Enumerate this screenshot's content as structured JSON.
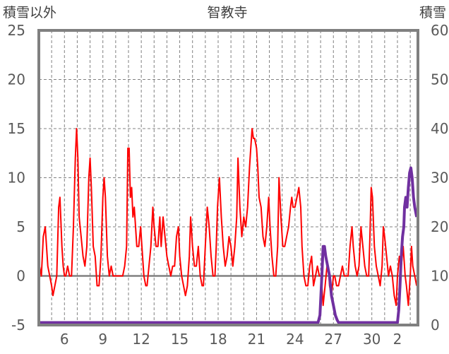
{
  "chart_data": {
    "type": "line",
    "title": "智教寺",
    "ylabel_left": "積雪以外",
    "ylabel_right": "積雪",
    "y_left_range": [
      -5,
      25
    ],
    "y_left_ticks": [
      -5,
      0,
      5,
      10,
      15,
      20,
      25
    ],
    "y_right_range": [
      0,
      60
    ],
    "y_right_ticks": [
      0,
      10,
      20,
      30,
      40,
      50,
      60
    ],
    "x_range_days": [
      4.0,
      33.6
    ],
    "x_tick_labels": [
      "6",
      "9",
      "12",
      "15",
      "18",
      "21",
      "24",
      "27",
      "30",
      "2"
    ],
    "x_tick_days": [
      6,
      9,
      12,
      15,
      18,
      21,
      24,
      27,
      30,
      32
    ],
    "grid": true,
    "colors": {
      "temperature": "#ff0000",
      "snow": "#7030a0",
      "frame": "#808080",
      "grid": "#808080",
      "zero_line": "#808080"
    },
    "series": [
      {
        "axis": "left",
        "points": [
          [
            4.05,
            1
          ],
          [
            4.2,
            0
          ],
          [
            4.35,
            4
          ],
          [
            4.5,
            5
          ],
          [
            4.6,
            3
          ],
          [
            4.7,
            1
          ],
          [
            4.85,
            0
          ],
          [
            5.0,
            -1
          ],
          [
            5.1,
            -2
          ],
          [
            5.25,
            -1
          ],
          [
            5.4,
            0
          ],
          [
            5.55,
            7
          ],
          [
            5.65,
            8
          ],
          [
            5.8,
            3
          ],
          [
            5.9,
            1
          ],
          [
            6.0,
            0
          ],
          [
            6.1,
            0
          ],
          [
            6.25,
            1
          ],
          [
            6.4,
            0
          ],
          [
            6.55,
            0
          ],
          [
            6.7,
            5
          ],
          [
            6.85,
            12
          ],
          [
            6.95,
            15
          ],
          [
            7.05,
            12
          ],
          [
            7.15,
            6
          ],
          [
            7.3,
            4
          ],
          [
            7.45,
            2
          ],
          [
            7.6,
            1
          ],
          [
            7.75,
            3
          ],
          [
            7.9,
            10
          ],
          [
            8.0,
            12
          ],
          [
            8.1,
            9
          ],
          [
            8.25,
            3
          ],
          [
            8.4,
            2
          ],
          [
            8.55,
            -1
          ],
          [
            8.7,
            -1
          ],
          [
            8.85,
            2
          ],
          [
            9.0,
            8
          ],
          [
            9.1,
            10
          ],
          [
            9.2,
            8
          ],
          [
            9.35,
            2
          ],
          [
            9.5,
            0
          ],
          [
            9.65,
            1
          ],
          [
            9.8,
            0
          ],
          [
            10.0,
            0
          ],
          [
            10.2,
            0
          ],
          [
            10.4,
            0
          ],
          [
            10.55,
            0
          ],
          [
            10.7,
            1
          ],
          [
            10.85,
            3
          ],
          [
            10.95,
            13
          ],
          [
            11.05,
            13
          ],
          [
            11.15,
            8
          ],
          [
            11.25,
            9
          ],
          [
            11.35,
            6
          ],
          [
            11.45,
            7
          ],
          [
            11.55,
            5
          ],
          [
            11.65,
            3
          ],
          [
            11.8,
            3
          ],
          [
            11.95,
            5
          ],
          [
            12.05,
            3
          ],
          [
            12.2,
            0
          ],
          [
            12.35,
            -1
          ],
          [
            12.45,
            -1
          ],
          [
            12.6,
            1
          ],
          [
            12.75,
            3
          ],
          [
            12.9,
            7
          ],
          [
            13.0,
            5
          ],
          [
            13.15,
            3
          ],
          [
            13.3,
            3
          ],
          [
            13.45,
            6
          ],
          [
            13.55,
            3
          ],
          [
            13.7,
            6
          ],
          [
            13.85,
            4
          ],
          [
            14.0,
            2
          ],
          [
            14.15,
            1
          ],
          [
            14.3,
            0
          ],
          [
            14.45,
            1
          ],
          [
            14.6,
            1
          ],
          [
            14.75,
            4
          ],
          [
            14.9,
            5
          ],
          [
            15.0,
            2
          ],
          [
            15.15,
            0
          ],
          [
            15.3,
            -1
          ],
          [
            15.45,
            -2
          ],
          [
            15.6,
            -1
          ],
          [
            15.75,
            2
          ],
          [
            15.85,
            6
          ],
          [
            16.0,
            3
          ],
          [
            16.15,
            1
          ],
          [
            16.3,
            1
          ],
          [
            16.45,
            3
          ],
          [
            16.6,
            0
          ],
          [
            16.75,
            -1
          ],
          [
            16.85,
            -1
          ],
          [
            17.0,
            3
          ],
          [
            17.15,
            7
          ],
          [
            17.3,
            5
          ],
          [
            17.45,
            2
          ],
          [
            17.6,
            0
          ],
          [
            17.75,
            0
          ],
          [
            17.85,
            3
          ],
          [
            17.95,
            7
          ],
          [
            18.1,
            10
          ],
          [
            18.25,
            6
          ],
          [
            18.4,
            3
          ],
          [
            18.55,
            1
          ],
          [
            18.7,
            2
          ],
          [
            18.85,
            4
          ],
          [
            19.0,
            3
          ],
          [
            19.15,
            1
          ],
          [
            19.3,
            3
          ],
          [
            19.45,
            6
          ],
          [
            19.55,
            12
          ],
          [
            19.7,
            7
          ],
          [
            19.85,
            4
          ],
          [
            20.0,
            6
          ],
          [
            20.15,
            5
          ],
          [
            20.3,
            7
          ],
          [
            20.45,
            11
          ],
          [
            20.55,
            13
          ],
          [
            20.65,
            15
          ],
          [
            20.75,
            14
          ],
          [
            20.85,
            14
          ],
          [
            21.0,
            13
          ],
          [
            21.1,
            11
          ],
          [
            21.2,
            8
          ],
          [
            21.35,
            7
          ],
          [
            21.5,
            4
          ],
          [
            21.65,
            3
          ],
          [
            21.8,
            5
          ],
          [
            21.95,
            8
          ],
          [
            22.05,
            5
          ],
          [
            22.2,
            2
          ],
          [
            22.35,
            0
          ],
          [
            22.5,
            0
          ],
          [
            22.65,
            3
          ],
          [
            22.75,
            10
          ],
          [
            22.9,
            6
          ],
          [
            23.05,
            3
          ],
          [
            23.2,
            3
          ],
          [
            23.35,
            4
          ],
          [
            23.5,
            5
          ],
          [
            23.65,
            7
          ],
          [
            23.75,
            8
          ],
          [
            23.85,
            7
          ],
          [
            24.0,
            7
          ],
          [
            24.15,
            8
          ],
          [
            24.3,
            9
          ],
          [
            24.45,
            7
          ],
          [
            24.55,
            3
          ],
          [
            24.7,
            0
          ],
          [
            24.85,
            -1
          ],
          [
            25.0,
            -1
          ],
          [
            25.15,
            1
          ],
          [
            25.3,
            2
          ],
          [
            25.45,
            -1
          ],
          [
            25.6,
            0
          ],
          [
            25.75,
            1
          ],
          [
            25.9,
            0
          ],
          [
            26.05,
            0
          ],
          [
            26.2,
            -3
          ],
          [
            26.35,
            -1
          ],
          [
            26.5,
            1
          ],
          [
            26.6,
            1
          ],
          [
            26.7,
            -1
          ],
          [
            26.85,
            -2
          ],
          [
            27.0,
            0
          ],
          [
            27.1,
            0
          ],
          [
            27.25,
            -1
          ],
          [
            27.4,
            -1
          ],
          [
            27.55,
            0
          ],
          [
            27.7,
            1
          ],
          [
            27.85,
            0
          ],
          [
            28.0,
            0
          ],
          [
            28.15,
            0
          ],
          [
            28.3,
            3
          ],
          [
            28.45,
            5
          ],
          [
            28.55,
            3
          ],
          [
            28.7,
            1
          ],
          [
            28.85,
            0
          ],
          [
            29.0,
            1
          ],
          [
            29.15,
            5
          ],
          [
            29.3,
            3
          ],
          [
            29.45,
            1
          ],
          [
            29.6,
            0
          ],
          [
            29.75,
            0
          ],
          [
            29.85,
            4
          ],
          [
            29.95,
            9
          ],
          [
            30.05,
            8
          ],
          [
            30.2,
            3
          ],
          [
            30.35,
            1
          ],
          [
            30.5,
            0
          ],
          [
            30.65,
            -1
          ],
          [
            30.8,
            1
          ],
          [
            30.9,
            5
          ],
          [
            31.0,
            4
          ],
          [
            31.15,
            2
          ],
          [
            31.3,
            0
          ],
          [
            31.45,
            1
          ],
          [
            31.6,
            0
          ],
          [
            31.75,
            -2
          ],
          [
            31.9,
            -3
          ],
          [
            32.0,
            0
          ],
          [
            32.15,
            2
          ],
          [
            32.3,
            1
          ],
          [
            32.45,
            3
          ],
          [
            32.6,
            0
          ],
          [
            32.7,
            -1
          ],
          [
            32.85,
            -3
          ],
          [
            33.0,
            0
          ],
          [
            33.1,
            3
          ],
          [
            33.2,
            1
          ],
          [
            33.35,
            0
          ],
          [
            33.5,
            -1
          ]
        ]
      },
      {
        "axis": "right",
        "points": [
          [
            4.0,
            0.5
          ],
          [
            10.0,
            0.5
          ],
          [
            16.0,
            0.5
          ],
          [
            22.0,
            0.5
          ],
          [
            25.8,
            0.5
          ],
          [
            25.95,
            2
          ],
          [
            26.1,
            10
          ],
          [
            26.2,
            16
          ],
          [
            26.3,
            16
          ],
          [
            26.4,
            14
          ],
          [
            26.55,
            12
          ],
          [
            26.7,
            10
          ],
          [
            26.85,
            6
          ],
          [
            27.0,
            4
          ],
          [
            27.15,
            2
          ],
          [
            27.3,
            1
          ],
          [
            27.4,
            0.5
          ],
          [
            30.0,
            0.5
          ],
          [
            32.0,
            0.5
          ],
          [
            32.1,
            3
          ],
          [
            32.2,
            8
          ],
          [
            32.3,
            14
          ],
          [
            32.4,
            18
          ],
          [
            32.5,
            20
          ],
          [
            32.55,
            24
          ],
          [
            32.65,
            26
          ],
          [
            32.75,
            24
          ],
          [
            32.85,
            28
          ],
          [
            32.95,
            31
          ],
          [
            33.05,
            32
          ],
          [
            33.15,
            30
          ],
          [
            33.25,
            26
          ],
          [
            33.35,
            24
          ],
          [
            33.5,
            22
          ]
        ]
      }
    ]
  }
}
